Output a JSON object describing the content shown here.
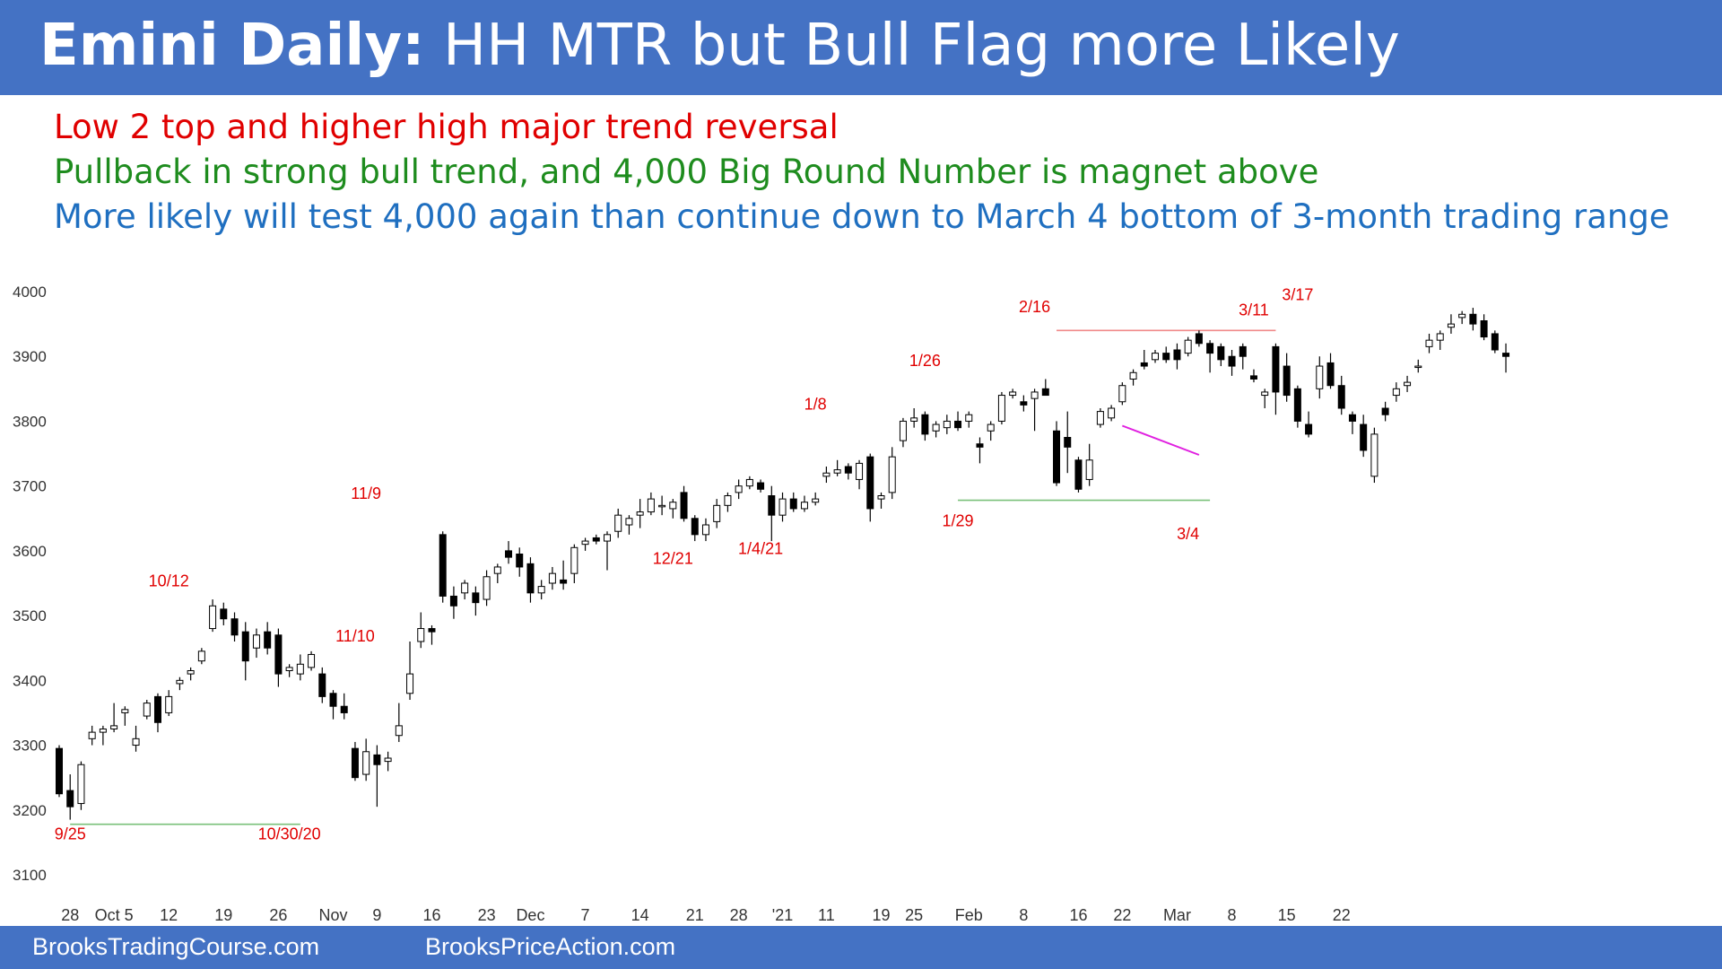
{
  "header": {
    "title_bold": "Emini Daily:",
    "title_rest": "HH MTR but Bull Flag more Likely"
  },
  "notes": [
    {
      "text": "Low 2 top and higher high major trend reversal",
      "color": "#e00000"
    },
    {
      "text": "Pullback in strong bull trend, and 4,000 Big Round Number is magnet above",
      "color": "#1e8c1e"
    },
    {
      "text": "More likely will test 4,000 again than continue down to March 4 bottom of 3-month trading range",
      "color": "#1f6fc0"
    }
  ],
  "footer": {
    "left": "BrooksTradingCourse.com",
    "right": "BrooksPriceAction.com"
  },
  "colors": {
    "header_bg": "#4472c4",
    "annotation": "#e00000",
    "support_line": "#7ac07a",
    "resistance_line": "#f08a8a",
    "wedge_line": "#e020e0"
  },
  "chart_data": {
    "type": "candlestick",
    "ylim": [
      3100,
      4000
    ],
    "yticks": [
      4000,
      3900,
      3800,
      3700,
      3600,
      3500,
      3400,
      3300,
      3200,
      3100
    ],
    "xticks": [
      {
        "label": "28",
        "i": 1
      },
      {
        "label": "Oct 5",
        "i": 5
      },
      {
        "label": "12",
        "i": 10
      },
      {
        "label": "19",
        "i": 15
      },
      {
        "label": "26",
        "i": 20
      },
      {
        "label": "Nov",
        "i": 25
      },
      {
        "label": "9",
        "i": 29
      },
      {
        "label": "16",
        "i": 34
      },
      {
        "label": "23",
        "i": 39
      },
      {
        "label": "Dec",
        "i": 43
      },
      {
        "label": "7",
        "i": 48
      },
      {
        "label": "14",
        "i": 53
      },
      {
        "label": "21",
        "i": 58
      },
      {
        "label": "28",
        "i": 62
      },
      {
        "label": "'21",
        "i": 66
      },
      {
        "label": "11",
        "i": 70
      },
      {
        "label": "19",
        "i": 75
      },
      {
        "label": "25",
        "i": 78
      },
      {
        "label": "Feb",
        "i": 83
      },
      {
        "label": "8",
        "i": 88
      },
      {
        "label": "16",
        "i": 93
      },
      {
        "label": "22",
        "i": 97
      },
      {
        "label": "Mar",
        "i": 102
      },
      {
        "label": "8",
        "i": 107
      },
      {
        "label": "15",
        "i": 112
      },
      {
        "label": "22",
        "i": 117
      }
    ],
    "annotations": [
      {
        "text": "9/25",
        "i": 1,
        "price": 3155
      },
      {
        "text": "10/12",
        "i": 10,
        "price": 3545
      },
      {
        "text": "11/10",
        "i": 27,
        "price": 3460
      },
      {
        "text": "10/30/20",
        "i": 21,
        "price": 3155
      },
      {
        "text": "11/9",
        "i": 28,
        "price": 3680
      },
      {
        "text": "12/21",
        "i": 56,
        "price": 3580
      },
      {
        "text": "1/4/21",
        "i": 64,
        "price": 3595
      },
      {
        "text": "1/8",
        "i": 69,
        "price": 3818
      },
      {
        "text": "1/26",
        "i": 79,
        "price": 3885
      },
      {
        "text": "1/29",
        "i": 82,
        "price": 3638
      },
      {
        "text": "2/16",
        "i": 89,
        "price": 3968
      },
      {
        "text": "3/4",
        "i": 103,
        "price": 3618
      },
      {
        "text": "3/11",
        "i": 109,
        "price": 3963
      },
      {
        "text": "3/17",
        "i": 113,
        "price": 3987
      }
    ],
    "lines": [
      {
        "from": [
          1,
          3178
        ],
        "to": [
          22,
          3178
        ],
        "kind": "support"
      },
      {
        "from": [
          82,
          3678
        ],
        "to": [
          105,
          3678
        ],
        "kind": "support"
      },
      {
        "from": [
          91,
          3940
        ],
        "to": [
          111,
          3940
        ],
        "kind": "resistance"
      },
      {
        "from": [
          97,
          3793
        ],
        "to": [
          104,
          3748
        ],
        "kind": "wedge"
      }
    ],
    "candles": [
      [
        3295,
        3300,
        3220,
        3225
      ],
      [
        3230,
        3255,
        3185,
        3205
      ],
      [
        3210,
        3275,
        3200,
        3270
      ],
      [
        3310,
        3330,
        3300,
        3320
      ],
      [
        3320,
        3330,
        3300,
        3325
      ],
      [
        3325,
        3365,
        3320,
        3330
      ],
      [
        3350,
        3360,
        3330,
        3355
      ],
      [
        3300,
        3330,
        3290,
        3310
      ],
      [
        3345,
        3370,
        3340,
        3365
      ],
      [
        3375,
        3380,
        3320,
        3335
      ],
      [
        3350,
        3385,
        3345,
        3375
      ],
      [
        3395,
        3405,
        3385,
        3400
      ],
      [
        3410,
        3420,
        3400,
        3415
      ],
      [
        3430,
        3450,
        3425,
        3445
      ],
      [
        3480,
        3525,
        3475,
        3515
      ],
      [
        3510,
        3520,
        3485,
        3495
      ],
      [
        3495,
        3505,
        3460,
        3470
      ],
      [
        3475,
        3490,
        3400,
        3430
      ],
      [
        3450,
        3480,
        3435,
        3470
      ],
      [
        3475,
        3490,
        3440,
        3450
      ],
      [
        3470,
        3480,
        3390,
        3410
      ],
      [
        3415,
        3425,
        3405,
        3420
      ],
      [
        3410,
        3440,
        3400,
        3425
      ],
      [
        3420,
        3445,
        3415,
        3440
      ],
      [
        3410,
        3420,
        3365,
        3375
      ],
      [
        3380,
        3385,
        3340,
        3360
      ],
      [
        3360,
        3380,
        3340,
        3350
      ],
      [
        3295,
        3305,
        3245,
        3250
      ],
      [
        3255,
        3310,
        3245,
        3290
      ],
      [
        3285,
        3300,
        3205,
        3270
      ],
      [
        3275,
        3290,
        3260,
        3280
      ],
      [
        3315,
        3365,
        3305,
        3330
      ],
      [
        3380,
        3460,
        3370,
        3410
      ],
      [
        3460,
        3505,
        3450,
        3480
      ],
      [
        3480,
        3485,
        3455,
        3475
      ],
      [
        3625,
        3630,
        3520,
        3530
      ],
      [
        3530,
        3545,
        3495,
        3515
      ],
      [
        3535,
        3555,
        3525,
        3550
      ],
      [
        3535,
        3545,
        3500,
        3520
      ],
      [
        3525,
        3570,
        3515,
        3560
      ],
      [
        3565,
        3580,
        3550,
        3575
      ],
      [
        3600,
        3615,
        3580,
        3590
      ],
      [
        3595,
        3605,
        3560,
        3575
      ],
      [
        3580,
        3590,
        3520,
        3535
      ],
      [
        3535,
        3555,
        3525,
        3545
      ],
      [
        3550,
        3575,
        3540,
        3565
      ],
      [
        3555,
        3585,
        3540,
        3550
      ],
      [
        3565,
        3610,
        3550,
        3605
      ],
      [
        3610,
        3620,
        3600,
        3615
      ],
      [
        3620,
        3625,
        3610,
        3615
      ],
      [
        3615,
        3630,
        3570,
        3625
      ],
      [
        3630,
        3665,
        3620,
        3655
      ],
      [
        3640,
        3655,
        3625,
        3650
      ],
      [
        3655,
        3680,
        3635,
        3660
      ],
      [
        3660,
        3690,
        3655,
        3680
      ],
      [
        3670,
        3685,
        3655,
        3670
      ],
      [
        3665,
        3680,
        3650,
        3675
      ],
      [
        3690,
        3700,
        3645,
        3650
      ],
      [
        3650,
        3655,
        3615,
        3625
      ],
      [
        3625,
        3650,
        3615,
        3640
      ],
      [
        3645,
        3680,
        3635,
        3670
      ],
      [
        3670,
        3690,
        3660,
        3685
      ],
      [
        3690,
        3710,
        3680,
        3700
      ],
      [
        3700,
        3715,
        3695,
        3710
      ],
      [
        3705,
        3710,
        3690,
        3695
      ],
      [
        3685,
        3700,
        3615,
        3655
      ],
      [
        3655,
        3690,
        3645,
        3680
      ],
      [
        3680,
        3690,
        3660,
        3665
      ],
      [
        3665,
        3685,
        3660,
        3675
      ],
      [
        3675,
        3690,
        3670,
        3680
      ],
      [
        3715,
        3730,
        3705,
        3720
      ],
      [
        3720,
        3740,
        3715,
        3725
      ],
      [
        3730,
        3735,
        3710,
        3720
      ],
      [
        3710,
        3740,
        3695,
        3735
      ],
      [
        3745,
        3750,
        3645,
        3665
      ],
      [
        3680,
        3690,
        3665,
        3685
      ],
      [
        3690,
        3760,
        3680,
        3745
      ],
      [
        3770,
        3805,
        3760,
        3800
      ],
      [
        3800,
        3820,
        3790,
        3805
      ],
      [
        3810,
        3815,
        3770,
        3780
      ],
      [
        3785,
        3800,
        3775,
        3795
      ],
      [
        3790,
        3810,
        3780,
        3800
      ],
      [
        3800,
        3815,
        3785,
        3790
      ],
      [
        3800,
        3815,
        3790,
        3810
      ],
      [
        3765,
        3775,
        3735,
        3760
      ],
      [
        3785,
        3800,
        3770,
        3795
      ],
      [
        3800,
        3845,
        3795,
        3840
      ],
      [
        3840,
        3850,
        3835,
        3845
      ],
      [
        3830,
        3840,
        3815,
        3825
      ],
      [
        3835,
        3850,
        3785,
        3845
      ],
      [
        3850,
        3865,
        3840,
        3840
      ],
      [
        3785,
        3800,
        3700,
        3705
      ],
      [
        3775,
        3815,
        3720,
        3760
      ],
      [
        3740,
        3745,
        3690,
        3695
      ],
      [
        3710,
        3765,
        3700,
        3740
      ],
      [
        3795,
        3820,
        3790,
        3815
      ],
      [
        3805,
        3825,
        3800,
        3820
      ],
      [
        3830,
        3860,
        3825,
        3855
      ],
      [
        3865,
        3880,
        3855,
        3875
      ],
      [
        3890,
        3910,
        3880,
        3885
      ],
      [
        3895,
        3910,
        3890,
        3905
      ],
      [
        3905,
        3915,
        3890,
        3895
      ],
      [
        3910,
        3920,
        3880,
        3895
      ],
      [
        3905,
        3930,
        3900,
        3925
      ],
      [
        3935,
        3940,
        3915,
        3920
      ],
      [
        3920,
        3925,
        3875,
        3905
      ],
      [
        3915,
        3920,
        3885,
        3895
      ],
      [
        3900,
        3910,
        3870,
        3885
      ],
      [
        3915,
        3920,
        3880,
        3900
      ],
      [
        3870,
        3880,
        3860,
        3865
      ],
      [
        3840,
        3850,
        3820,
        3845
      ],
      [
        3915,
        3920,
        3810,
        3845
      ],
      [
        3885,
        3905,
        3830,
        3840
      ],
      [
        3850,
        3855,
        3790,
        3800
      ],
      [
        3795,
        3815,
        3775,
        3780
      ],
      [
        3850,
        3900,
        3835,
        3885
      ],
      [
        3890,
        3905,
        3850,
        3855
      ],
      [
        3855,
        3870,
        3810,
        3820
      ],
      [
        3810,
        3815,
        3780,
        3800
      ],
      [
        3795,
        3810,
        3745,
        3755
      ],
      [
        3715,
        3790,
        3705,
        3780
      ],
      [
        3820,
        3830,
        3800,
        3810
      ],
      [
        3840,
        3860,
        3830,
        3850
      ],
      [
        3855,
        3870,
        3845,
        3860
      ],
      [
        3885,
        3895,
        3875,
        3885
      ],
      [
        3915,
        3935,
        3905,
        3925
      ],
      [
        3925,
        3940,
        3910,
        3935
      ],
      [
        3945,
        3965,
        3935,
        3950
      ],
      [
        3960,
        3970,
        3950,
        3965
      ],
      [
        3965,
        3975,
        3940,
        3950
      ],
      [
        3955,
        3965,
        3925,
        3930
      ],
      [
        3935,
        3940,
        3905,
        3910
      ],
      [
        3905,
        3920,
        3875,
        3900
      ]
    ]
  }
}
